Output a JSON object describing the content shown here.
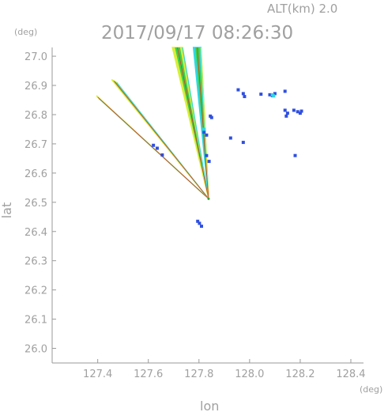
{
  "chart_data": {
    "type": "scatter",
    "title": "2017/09/17 08:26:30",
    "altitude_label": "ALT(km)  2.0",
    "xlabel": "lon",
    "ylabel": "lat",
    "x_unit": "(deg)",
    "y_unit": "(deg)",
    "xlim": [
      127.22,
      128.45
    ],
    "ylim": [
      25.95,
      27.03
    ],
    "x_ticks": [
      "127.4",
      "127.6",
      "127.8",
      "128.0",
      "128.2",
      "128.4"
    ],
    "y_ticks": [
      "27.0",
      "26.9",
      "26.8",
      "26.7",
      "26.6",
      "26.5",
      "26.4",
      "26.3",
      "26.2",
      "26.1",
      "26.0"
    ],
    "grid": false,
    "radar_site": {
      "lon": 127.838,
      "lat": 26.512
    },
    "colors": {
      "axis": "#9a9a9a",
      "text": "#a0a0a0",
      "echo_blue": "#2f4fe0",
      "echo_cyan": "#30d8e0",
      "echo_green": "#3ccf4a",
      "echo_yellow": "#d8ee3a",
      "echo_red": "#e03a20"
    },
    "series": [
      {
        "kind": "spike",
        "points": [
          [
            127.395,
            26.865
          ],
          [
            127.838,
            26.512
          ],
          [
            127.405,
            26.855
          ]
        ],
        "bands": [
          "#d8ee3a",
          "#3ccf4a",
          "#30d8e0"
        ]
      },
      {
        "kind": "spike",
        "points": [
          [
            127.455,
            26.92
          ],
          [
            127.838,
            26.512
          ],
          [
            127.475,
            26.91
          ]
        ],
        "bands": [
          "#d8ee3a",
          "#3ccf4a",
          "#30d8e0"
        ]
      },
      {
        "kind": "spike",
        "points": [
          [
            127.695,
            27.03
          ],
          [
            127.838,
            26.512
          ],
          [
            127.735,
            27.03
          ]
        ],
        "bands": [
          "#d8ee3a",
          "#3ccf4a",
          "#30d8e0"
        ]
      },
      {
        "kind": "spike",
        "points": [
          [
            127.778,
            27.03
          ],
          [
            127.838,
            26.512
          ],
          [
            127.808,
            27.03
          ]
        ],
        "bands": [
          "#30d8e0",
          "#3ccf4a",
          "#d8ee3a"
        ]
      },
      {
        "kind": "blobs",
        "color": "#2f4fe0",
        "points": [
          [
            127.795,
            26.435
          ],
          [
            127.802,
            26.428
          ],
          [
            127.81,
            26.418
          ],
          [
            127.955,
            26.885
          ],
          [
            127.975,
            26.872
          ],
          [
            127.98,
            26.862
          ],
          [
            128.045,
            26.87
          ],
          [
            128.08,
            26.868
          ],
          [
            128.09,
            26.865
          ],
          [
            128.1,
            26.872
          ],
          [
            128.14,
            26.815
          ],
          [
            128.15,
            26.805
          ],
          [
            128.145,
            26.795
          ],
          [
            128.175,
            26.815
          ],
          [
            128.19,
            26.81
          ],
          [
            128.2,
            26.805
          ],
          [
            128.205,
            26.812
          ],
          [
            127.82,
            26.74
          ],
          [
            127.83,
            26.73
          ],
          [
            127.845,
            26.795
          ],
          [
            127.85,
            26.79
          ],
          [
            127.62,
            26.695
          ],
          [
            127.635,
            26.685
          ],
          [
            127.655,
            26.662
          ],
          [
            127.83,
            26.66
          ],
          [
            127.84,
            26.64
          ],
          [
            127.925,
            26.72
          ],
          [
            127.975,
            26.705
          ],
          [
            128.14,
            26.88
          ],
          [
            128.18,
            26.66
          ]
        ]
      },
      {
        "kind": "blobs",
        "color": "#30d8e0",
        "points": [
          [
            128.09,
            26.868
          ],
          [
            128.095,
            26.864
          ],
          [
            127.82,
            26.75
          ]
        ]
      }
    ]
  }
}
